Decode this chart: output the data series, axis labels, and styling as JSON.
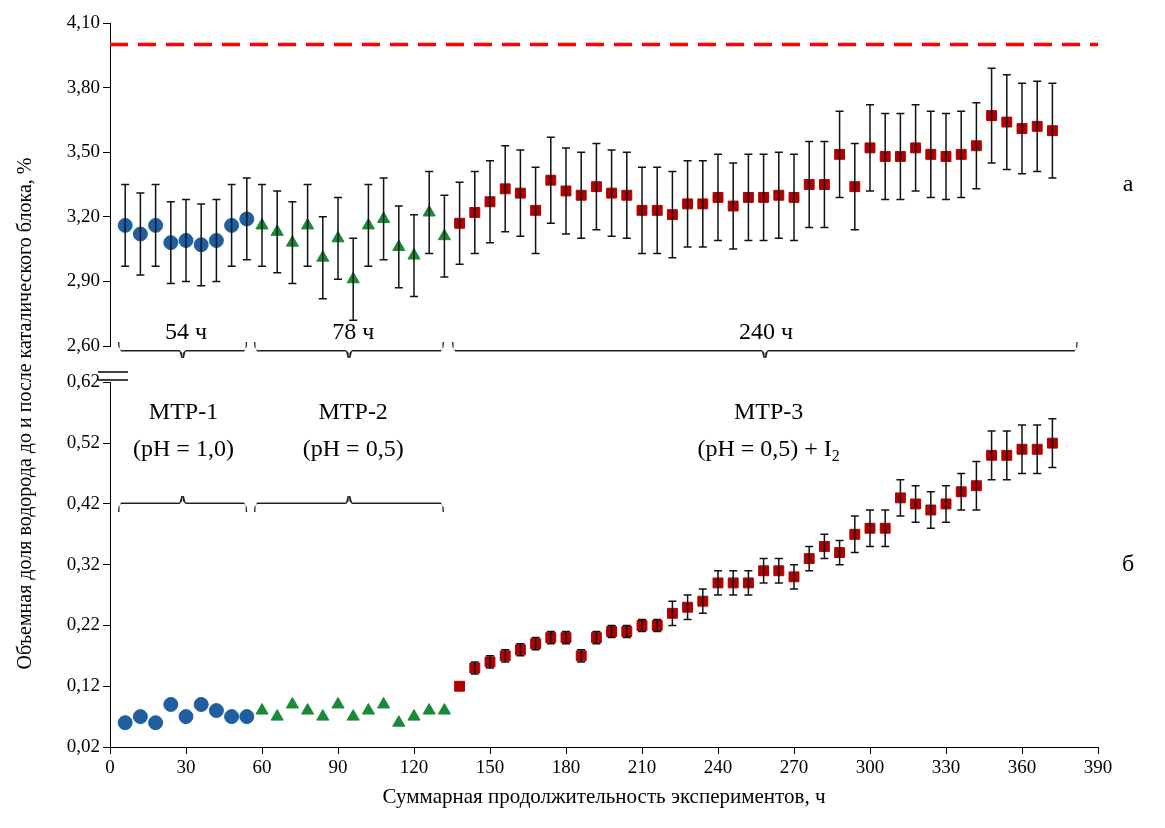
{
  "chart_data": [
    {
      "type": "scatter",
      "ylabel": "Объемная доля водорода до и после каталического блока, %",
      "xlim": [
        0,
        390
      ],
      "ylim": [
        2.6,
        4.1
      ],
      "yticks": [
        {
          "value": 2.6,
          "label": "2,60"
        },
        {
          "value": 2.9,
          "label": "2,90"
        },
        {
          "value": 3.2,
          "label": "3,20"
        },
        {
          "value": 3.5,
          "label": "3,50"
        },
        {
          "value": 3.8,
          "label": "3,80"
        },
        {
          "value": 4.1,
          "label": "4,10"
        }
      ],
      "tick_labels": "y",
      "grid": false,
      "legend": false,
      "ref_lines": [
        {
          "axis": "y",
          "value": 4.0,
          "color": "#ff0000",
          "line_style": "dashed"
        }
      ],
      "annotations": [
        "54 ч",
        "78 ч",
        "240 ч",
        "а"
      ],
      "series": [
        {
          "color": "#1f5fa0",
          "marker": "circle",
          "x": [
            6,
            12,
            18,
            24,
            30,
            36,
            42,
            48,
            54
          ],
          "values": [
            3.16,
            3.12,
            3.16,
            3.08,
            3.09,
            3.07,
            3.09,
            3.16,
            3.19
          ],
          "errors": [
            0.19,
            0.19,
            0.19,
            0.19,
            0.19,
            0.19,
            0.19,
            0.19,
            0.19
          ]
        },
        {
          "color": "#1a8a3a",
          "marker": "triangle",
          "x": [
            60,
            66,
            72,
            78,
            84,
            90,
            96,
            102,
            108,
            114,
            120,
            126,
            132
          ],
          "values": [
            3.16,
            3.13,
            3.08,
            3.16,
            3.01,
            3.1,
            2.91,
            3.16,
            3.19,
            3.06,
            3.02,
            3.22,
            3.11
          ],
          "errors": [
            0.19,
            0.19,
            0.19,
            0.19,
            0.19,
            0.19,
            0.19,
            0.19,
            0.19,
            0.19,
            0.19,
            0.19,
            0.19
          ]
        },
        {
          "color": "#b00000",
          "marker": "square",
          "x": [
            138,
            144,
            150,
            156,
            162,
            168,
            174,
            180,
            186,
            192,
            198,
            204,
            210,
            216,
            222,
            228,
            234,
            240,
            246,
            252,
            258,
            264,
            270,
            276,
            282,
            288,
            294,
            300,
            306,
            312,
            318,
            324,
            330,
            336,
            342,
            348,
            354,
            360,
            366,
            372
          ],
          "values": [
            3.17,
            3.22,
            3.27,
            3.33,
            3.31,
            3.23,
            3.37,
            3.32,
            3.3,
            3.34,
            3.31,
            3.3,
            3.23,
            3.23,
            3.21,
            3.26,
            3.26,
            3.29,
            3.25,
            3.29,
            3.29,
            3.3,
            3.29,
            3.35,
            3.35,
            3.49,
            3.34,
            3.52,
            3.48,
            3.48,
            3.52,
            3.49,
            3.48,
            3.49,
            3.53,
            3.67,
            3.64,
            3.61,
            3.62,
            3.6
          ],
          "errors": [
            0.19,
            0.19,
            0.19,
            0.2,
            0.2,
            0.2,
            0.2,
            0.2,
            0.2,
            0.2,
            0.2,
            0.2,
            0.2,
            0.2,
            0.2,
            0.2,
            0.2,
            0.2,
            0.2,
            0.2,
            0.2,
            0.2,
            0.2,
            0.2,
            0.2,
            0.2,
            0.2,
            0.2,
            0.2,
            0.2,
            0.2,
            0.2,
            0.2,
            0.2,
            0.2,
            0.22,
            0.22,
            0.21,
            0.21,
            0.22
          ]
        }
      ]
    },
    {
      "type": "scatter",
      "xlabel": "Суммарная продолжительность экспериментов, ч",
      "xlim": [
        0,
        390
      ],
      "xticks": [
        0,
        30,
        60,
        90,
        120,
        150,
        180,
        210,
        240,
        270,
        300,
        330,
        360,
        390
      ],
      "ylim": [
        0.02,
        0.62
      ],
      "yticks": [
        {
          "value": 0.02,
          "label": "0,02"
        },
        {
          "value": 0.12,
          "label": "0,12"
        },
        {
          "value": 0.22,
          "label": "0,22"
        },
        {
          "value": 0.32,
          "label": "0,32"
        },
        {
          "value": 0.42,
          "label": "0,42"
        },
        {
          "value": 0.52,
          "label": "0,52"
        },
        {
          "value": 0.62,
          "label": "0,62"
        }
      ],
      "grid": false,
      "legend": false,
      "annotations": [
        "МТР-1",
        "(pH = 1,0)",
        "МТР-2",
        "(pH = 0,5)",
        "МТР-3",
        "(pH = 0,5) + I$_{2}$",
        "б"
      ],
      "series": [
        {
          "color": "#1f5fa0",
          "marker": "circle",
          "x": [
            6,
            12,
            18,
            24,
            30,
            36,
            42,
            48,
            54
          ],
          "values": [
            0.06,
            0.07,
            0.06,
            0.09,
            0.07,
            0.09,
            0.08,
            0.07,
            0.07
          ]
        },
        {
          "color": "#1a8a3a",
          "marker": "triangle",
          "x": [
            60,
            66,
            72,
            78,
            84,
            90,
            96,
            102,
            108,
            114,
            120,
            126,
            132
          ],
          "values": [
            0.08,
            0.07,
            0.09,
            0.08,
            0.07,
            0.09,
            0.07,
            0.08,
            0.09,
            0.06,
            0.07,
            0.08,
            0.08
          ]
        },
        {
          "color": "#b00000",
          "marker": "square",
          "x": [
            138,
            144,
            150,
            156,
            162,
            168,
            174,
            180,
            186,
            192,
            198,
            204,
            210,
            216,
            222,
            228,
            234,
            240,
            246,
            252,
            258,
            264,
            270,
            276,
            282,
            288,
            294,
            300,
            306,
            312,
            318,
            324,
            330,
            336,
            342,
            348,
            354,
            360,
            366,
            372
          ],
          "values": [
            0.12,
            0.15,
            0.16,
            0.17,
            0.18,
            0.19,
            0.2,
            0.2,
            0.17,
            0.2,
            0.21,
            0.21,
            0.22,
            0.22,
            0.24,
            0.25,
            0.26,
            0.29,
            0.29,
            0.29,
            0.31,
            0.31,
            0.3,
            0.33,
            0.35,
            0.34,
            0.37,
            0.38,
            0.38,
            0.43,
            0.42,
            0.41,
            0.42,
            0.44,
            0.45,
            0.5,
            0.5,
            0.51,
            0.51,
            0.52
          ],
          "errors": [
            null,
            0.01,
            0.01,
            0.01,
            0.01,
            0.01,
            0.01,
            0.01,
            0.01,
            0.01,
            0.01,
            0.01,
            0.01,
            0.01,
            0.02,
            0.02,
            0.02,
            0.02,
            0.02,
            0.02,
            0.02,
            0.02,
            0.02,
            0.02,
            0.02,
            0.02,
            0.03,
            0.03,
            0.03,
            0.03,
            0.03,
            0.03,
            0.03,
            0.03,
            0.04,
            0.04,
            0.04,
            0.04,
            0.04,
            0.04
          ]
        }
      ]
    }
  ]
}
